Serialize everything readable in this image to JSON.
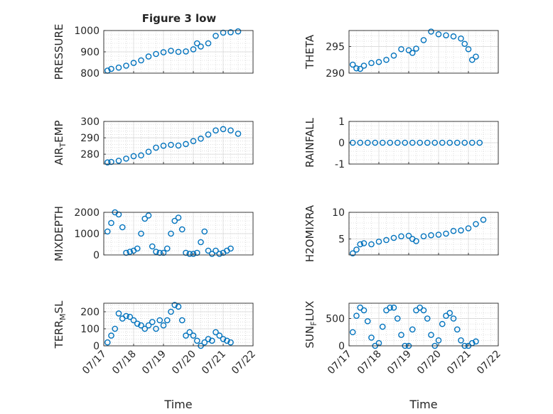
{
  "figure_title": "Figure 3 low",
  "xlabel": "Time",
  "x_ticks": [
    "07/17",
    "07/18",
    "07/19",
    "07/20",
    "07/21",
    "07/22"
  ],
  "marker_color": "#0072BD",
  "chart_data": [
    {
      "type": "scatter",
      "ylabel": "PRESSURE",
      "ylim": [
        800,
        1000
      ],
      "yticks": [
        800,
        900,
        1000
      ],
      "grid": true,
      "x": [
        "07/17 03:00",
        "07/17 06:00",
        "07/17 12:00",
        "07/17 18:00",
        "07/18 00:00",
        "07/18 06:00",
        "07/18 12:00",
        "07/18 18:00",
        "07/19 00:00",
        "07/19 06:00",
        "07/19 12:00",
        "07/19 18:00",
        "07/20 00:00",
        "07/20 03:00",
        "07/20 06:00",
        "07/20 12:00",
        "07/20 18:00",
        "07/21 00:00",
        "07/21 06:00",
        "07/21 12:00"
      ],
      "values": [
        812,
        820,
        826,
        835,
        848,
        860,
        878,
        890,
        898,
        905,
        900,
        902,
        912,
        940,
        925,
        940,
        975,
        990,
        992,
        996
      ]
    },
    {
      "type": "scatter",
      "ylabel": "THETA",
      "ylim": [
        290,
        298
      ],
      "yticks": [
        290,
        295
      ],
      "grid": true,
      "x": [
        "07/17 03:00",
        "07/17 06:00",
        "07/17 09:00",
        "07/17 12:00",
        "07/17 18:00",
        "07/18 00:00",
        "07/18 06:00",
        "07/18 12:00",
        "07/18 18:00",
        "07/19 00:00",
        "07/19 03:00",
        "07/19 06:00",
        "07/19 12:00",
        "07/19 18:00",
        "07/20 00:00",
        "07/20 06:00",
        "07/20 12:00",
        "07/20 18:00",
        "07/20 21:00",
        "07/21 00:00",
        "07/21 03:00",
        "07/21 06:00"
      ],
      "values": [
        291.6,
        290.9,
        290.8,
        291.4,
        291.9,
        292.1,
        292.5,
        293.3,
        294.5,
        294.3,
        293.8,
        294.6,
        296.2,
        297.8,
        297.3,
        297.1,
        296.9,
        296.5,
        295.5,
        294.5,
        292.5,
        293.1
      ]
    },
    {
      "type": "scatter",
      "ylabel": "AIR_TEMP",
      "ylim": [
        274,
        300
      ],
      "yticks": [
        280,
        290,
        300
      ],
      "grid": true,
      "x": [
        "07/17 03:00",
        "07/17 06:00",
        "07/17 12:00",
        "07/17 18:00",
        "07/18 00:00",
        "07/18 06:00",
        "07/18 12:00",
        "07/18 18:00",
        "07/19 00:00",
        "07/19 06:00",
        "07/19 12:00",
        "07/19 18:00",
        "07/20 00:00",
        "07/20 06:00",
        "07/20 12:00",
        "07/20 18:00",
        "07/21 00:00",
        "07/21 06:00",
        "07/21 12:00"
      ],
      "values": [
        275.0,
        275.3,
        276.0,
        277.3,
        278.8,
        279.3,
        281.5,
        284.0,
        285.2,
        285.7,
        285.3,
        286.2,
        288.0,
        289.5,
        292.0,
        294.5,
        295.3,
        294.5,
        292.5
      ]
    },
    {
      "type": "scatter",
      "ylabel": "RAINFALL",
      "ylim": [
        -1,
        1
      ],
      "yticks": [
        -1,
        0,
        1
      ],
      "grid": true,
      "x": [
        "07/17 03:00",
        "07/17 09:00",
        "07/17 15:00",
        "07/17 21:00",
        "07/18 03:00",
        "07/18 09:00",
        "07/18 15:00",
        "07/18 21:00",
        "07/19 03:00",
        "07/19 09:00",
        "07/19 15:00",
        "07/19 21:00",
        "07/20 03:00",
        "07/20 09:00",
        "07/20 15:00",
        "07/20 21:00",
        "07/21 03:00",
        "07/21 09:00"
      ],
      "values": [
        0,
        0,
        0,
        0,
        0,
        0,
        0,
        0,
        0,
        0,
        0,
        0,
        0,
        0,
        0,
        0,
        0,
        0
      ]
    },
    {
      "type": "scatter",
      "ylabel": "MIXDEPTH",
      "ylim": [
        0,
        2000
      ],
      "yticks": [
        0,
        1000,
        2000
      ],
      "grid": true,
      "x": [
        "07/17 03:00",
        "07/17 06:00",
        "07/17 09:00",
        "07/17 12:00",
        "07/17 15:00",
        "07/17 18:00",
        "07/17 21:00",
        "07/18 00:00",
        "07/18 03:00",
        "07/18 06:00",
        "07/18 09:00",
        "07/18 12:00",
        "07/18 15:00",
        "07/18 18:00",
        "07/18 21:00",
        "07/19 00:00",
        "07/19 03:00",
        "07/19 06:00",
        "07/19 09:00",
        "07/19 12:00",
        "07/19 15:00",
        "07/19 18:00",
        "07/19 21:00",
        "07/20 00:00",
        "07/20 03:00",
        "07/20 06:00",
        "07/20 09:00",
        "07/20 12:00",
        "07/20 15:00",
        "07/20 18:00",
        "07/20 21:00",
        "07/21 00:00",
        "07/21 03:00",
        "07/21 06:00"
      ],
      "values": [
        1100,
        1500,
        2000,
        1900,
        1300,
        100,
        150,
        200,
        300,
        1000,
        1700,
        1850,
        400,
        150,
        100,
        100,
        300,
        1000,
        1600,
        1750,
        1200,
        100,
        50,
        50,
        100,
        600,
        1100,
        200,
        50,
        200,
        50,
        100,
        200,
        300
      ]
    },
    {
      "type": "scatter",
      "ylabel": "H2OMIXRA",
      "ylim": [
        2,
        10
      ],
      "yticks": [
        5,
        10
      ],
      "grid": true,
      "x": [
        "07/17 03:00",
        "07/17 06:00",
        "07/17 09:00",
        "07/17 12:00",
        "07/17 18:00",
        "07/18 00:00",
        "07/18 06:00",
        "07/18 12:00",
        "07/18 18:00",
        "07/19 00:00",
        "07/19 03:00",
        "07/19 06:00",
        "07/19 12:00",
        "07/19 18:00",
        "07/20 00:00",
        "07/20 06:00",
        "07/20 12:00",
        "07/20 18:00",
        "07/21 00:00",
        "07/21 06:00",
        "07/21 12:00"
      ],
      "values": [
        2.3,
        3.0,
        4.0,
        4.2,
        4.0,
        4.5,
        4.8,
        5.2,
        5.5,
        5.6,
        5.0,
        4.6,
        5.5,
        5.7,
        5.8,
        6.0,
        6.5,
        6.6,
        7.0,
        7.8,
        8.6
      ]
    },
    {
      "type": "scatter",
      "ylabel": "TERR_MSL",
      "ylim": [
        0,
        250
      ],
      "yticks": [
        0,
        100,
        200
      ],
      "grid": true,
      "x": [
        "07/17 03:00",
        "07/17 06:00",
        "07/17 09:00",
        "07/17 12:00",
        "07/17 15:00",
        "07/17 18:00",
        "07/17 21:00",
        "07/18 00:00",
        "07/18 03:00",
        "07/18 06:00",
        "07/18 09:00",
        "07/18 12:00",
        "07/18 15:00",
        "07/18 18:00",
        "07/18 21:00",
        "07/19 00:00",
        "07/19 03:00",
        "07/19 06:00",
        "07/19 09:00",
        "07/19 12:00",
        "07/19 15:00",
        "07/19 18:00",
        "07/19 21:00",
        "07/20 00:00",
        "07/20 03:00",
        "07/20 06:00",
        "07/20 09:00",
        "07/20 12:00",
        "07/20 15:00",
        "07/20 18:00",
        "07/20 21:00",
        "07/21 00:00",
        "07/21 03:00",
        "07/21 06:00"
      ],
      "values": [
        20,
        60,
        100,
        190,
        160,
        175,
        170,
        150,
        130,
        120,
        100,
        120,
        140,
        100,
        150,
        120,
        150,
        200,
        240,
        230,
        150,
        60,
        80,
        60,
        30,
        0,
        20,
        40,
        30,
        80,
        60,
        40,
        30,
        20
      ]
    },
    {
      "type": "scatter",
      "ylabel": "SUN_FLUX",
      "ylim": [
        0,
        780
      ],
      "yticks": [
        0,
        500
      ],
      "grid": true,
      "x": [
        "07/17 03:00",
        "07/17 06:00",
        "07/17 09:00",
        "07/17 12:00",
        "07/17 15:00",
        "07/17 18:00",
        "07/17 21:00",
        "07/18 00:00",
        "07/18 03:00",
        "07/18 06:00",
        "07/18 09:00",
        "07/18 12:00",
        "07/18 15:00",
        "07/18 18:00",
        "07/18 21:00",
        "07/19 00:00",
        "07/19 03:00",
        "07/19 06:00",
        "07/19 09:00",
        "07/19 12:00",
        "07/19 15:00",
        "07/19 18:00",
        "07/19 21:00",
        "07/20 00:00",
        "07/20 03:00",
        "07/20 06:00",
        "07/20 09:00",
        "07/20 12:00",
        "07/20 15:00",
        "07/20 18:00",
        "07/20 21:00",
        "07/21 00:00",
        "07/21 03:00",
        "07/21 06:00"
      ],
      "values": [
        250,
        550,
        700,
        650,
        450,
        150,
        0,
        50,
        350,
        650,
        700,
        700,
        500,
        200,
        0,
        0,
        300,
        650,
        700,
        650,
        500,
        200,
        0,
        100,
        400,
        550,
        600,
        500,
        300,
        100,
        0,
        0,
        50,
        80
      ]
    }
  ]
}
